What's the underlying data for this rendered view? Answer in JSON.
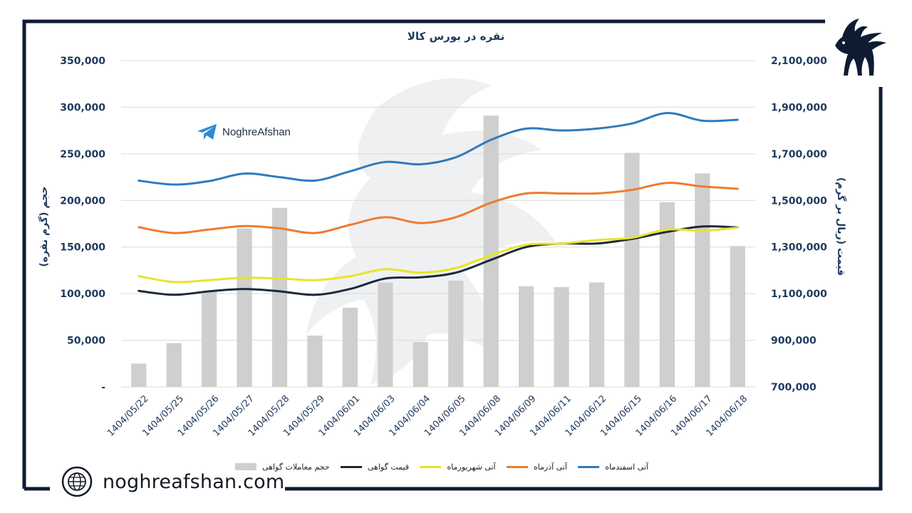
{
  "colors": {
    "frame": "#0f1b33",
    "axis_text": "#1f3a5f",
    "grid": "#d9d9d9",
    "volume": "#cfcfcf",
    "price": "#1b2a3a",
    "shahrivar": "#e8e42a",
    "azar": "#ee7b30",
    "esfand": "#2f7bbd"
  },
  "brand": {
    "label": "NoghreAfshan",
    "icon": "telegram-icon"
  },
  "site": {
    "url": "noghreafshan.com",
    "icon": "globe-icon"
  },
  "logo": {
    "icon": "ibex-pegasus-logo"
  },
  "chart_data": {
    "type": "bar",
    "title": "نقره در بورس کالا",
    "categories": [
      "1404/05/22",
      "1404/05/25",
      "1404/05/26",
      "1404/05/27",
      "1404/05/28",
      "1404/05/29",
      "1404/06/01",
      "1404/06/03",
      "1404/06/04",
      "1404/06/05",
      "1404/06/08",
      "1404/06/09",
      "1404/06/11",
      "1404/06/12",
      "1404/06/15",
      "1404/06/16",
      "1404/06/17",
      "1404/06/18"
    ],
    "left_axis": {
      "label": "حجم (گرم نقره)",
      "range": [
        0,
        350000
      ],
      "ticks": [
        0,
        50000,
        100000,
        150000,
        200000,
        250000,
        300000,
        350000
      ],
      "tick_labels": [
        "-",
        "50,000",
        "100,000",
        "150,000",
        "200,000",
        "250,000",
        "300,000",
        "350,000"
      ]
    },
    "right_axis": {
      "label": "قیمت (ریال بر گرم)",
      "range": [
        700000,
        2100000
      ],
      "ticks": [
        700000,
        900000,
        1100000,
        1300000,
        1500000,
        1700000,
        1900000,
        2100000
      ],
      "tick_labels": [
        "700,000",
        "900,000",
        "1,100,000",
        "1,300,000",
        "1,500,000",
        "1,700,000",
        "1,900,000",
        "2,100,000"
      ]
    },
    "grid": true,
    "legend_position": "bottom",
    "series": [
      {
        "name": "حجم معاملات گواهی",
        "type": "bar",
        "axis": "left",
        "color": "#cfcfcf",
        "values": [
          25000,
          47000,
          103000,
          170000,
          192000,
          55000,
          85000,
          112000,
          48000,
          114000,
          291000,
          108000,
          107000,
          112000,
          251000,
          198000,
          229000,
          151000
        ]
      },
      {
        "name": "قیمت گواهی",
        "type": "line",
        "axis": "right",
        "color": "#1b2a3a",
        "values": [
          1112000,
          1095000,
          1110000,
          1120000,
          1110000,
          1095000,
          1120000,
          1165000,
          1170000,
          1190000,
          1245000,
          1300000,
          1315000,
          1315000,
          1335000,
          1365000,
          1388000,
          1384000
        ]
      },
      {
        "name": "آتی شهریورماه",
        "type": "line",
        "axis": "right",
        "color": "#e8e42a",
        "values": [
          1175000,
          1150000,
          1158000,
          1168000,
          1165000,
          1158000,
          1175000,
          1205000,
          1190000,
          1210000,
          1265000,
          1310000,
          1315000,
          1330000,
          1340000,
          1375000,
          1370000,
          1383000
        ]
      },
      {
        "name": "آتی آذرماه",
        "type": "line",
        "axis": "right",
        "color": "#ee7b30",
        "values": [
          1385000,
          1360000,
          1375000,
          1390000,
          1380000,
          1360000,
          1395000,
          1428000,
          1403000,
          1428000,
          1490000,
          1530000,
          1530000,
          1530000,
          1545000,
          1575000,
          1560000,
          1550000
        ]
      },
      {
        "name": "آتی اسفندماه",
        "type": "line",
        "axis": "right",
        "color": "#2f7bbd",
        "values": [
          1585000,
          1568000,
          1583000,
          1615000,
          1600000,
          1585000,
          1625000,
          1665000,
          1655000,
          1685000,
          1760000,
          1808000,
          1800000,
          1808000,
          1830000,
          1875000,
          1842000,
          1846000
        ]
      }
    ]
  }
}
